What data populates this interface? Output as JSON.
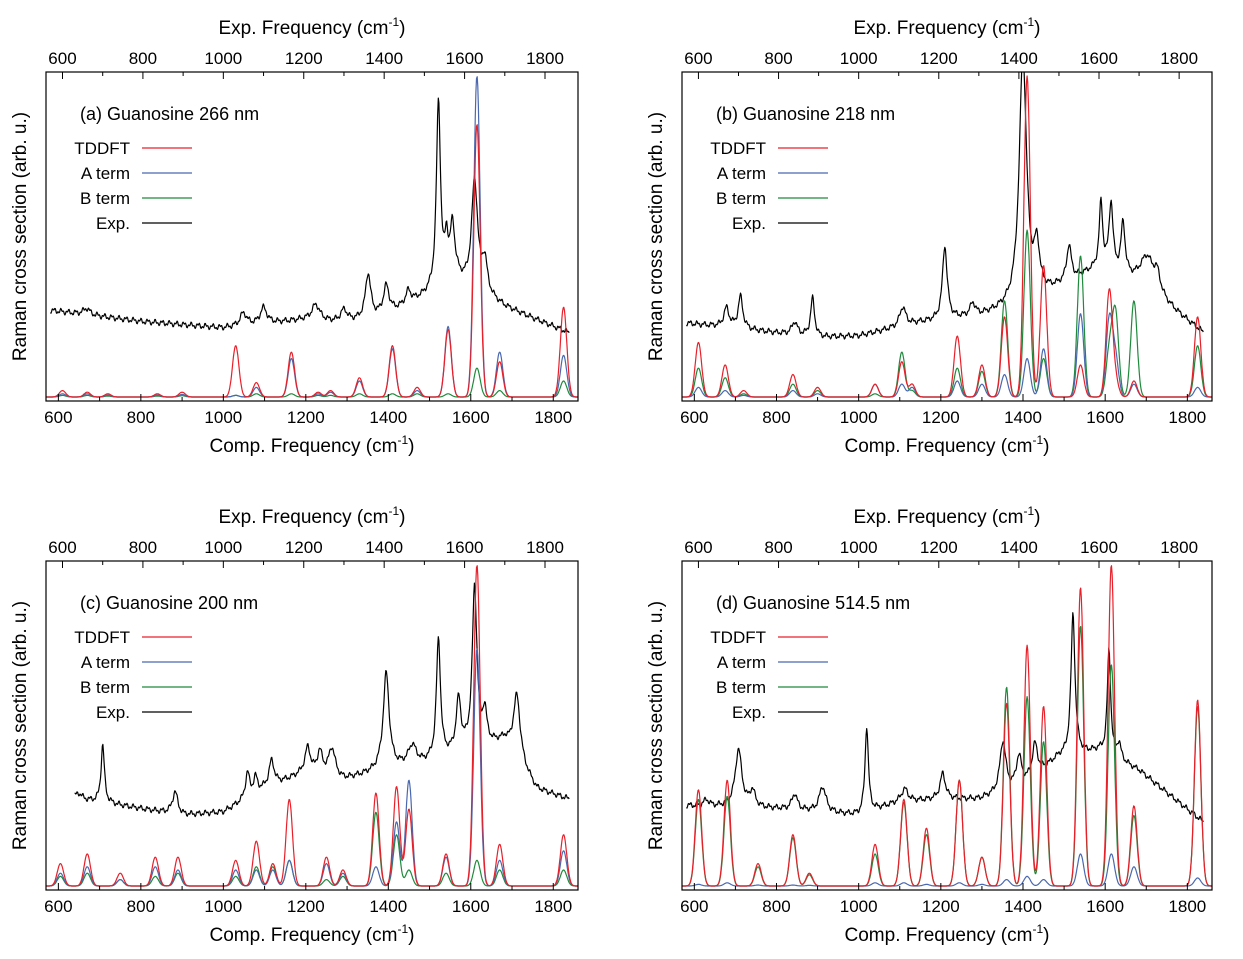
{
  "colors": {
    "TDDFT": "#e8202a",
    "A term": "#4a68b0",
    "B term": "#1f8a3c",
    "Exp.": "#000000"
  },
  "chart_data": [
    {
      "type": "line",
      "title": "(a) Guanosine 266 nm",
      "xlabel_bottom": "Comp. Frequency (cm",
      "xlabel_top": "Exp. Frequency (cm",
      "xlabel_sup": "-1",
      "xlabel_tail": ")",
      "ylabel": "Raman cross section (arb. u.)",
      "xlim": [
        570,
        1860
      ],
      "ylim": [
        0,
        1
      ],
      "xticks": [
        600,
        800,
        1000,
        1200,
        1400,
        1600,
        1800
      ],
      "xticks_top": [
        600,
        800,
        1000,
        1200,
        1400,
        1600,
        1800
      ],
      "top_axis": {
        "offset": 25,
        "scale": 0.975
      },
      "legend": [
        "TDDFT",
        "A term",
        "B term",
        "Exp."
      ],
      "calc_peaks": [
        [
          610,
          0.02,
          0.01,
          0.005
        ],
        [
          670,
          0.015,
          0.01,
          0.005
        ],
        [
          720,
          0.01,
          0.006,
          0.003
        ],
        [
          840,
          0.01,
          0.006,
          0.003
        ],
        [
          900,
          0.015,
          0.008,
          0.004
        ],
        [
          1030,
          0.16,
          0.005,
          0.005
        ],
        [
          1080,
          0.045,
          0.03,
          0.01
        ],
        [
          1165,
          0.14,
          0.12,
          0.01
        ],
        [
          1230,
          0.015,
          0.01,
          0.005
        ],
        [
          1260,
          0.02,
          0.015,
          0.005
        ],
        [
          1330,
          0.06,
          0.05,
          0.01
        ],
        [
          1410,
          0.16,
          0.15,
          0.01
        ],
        [
          1470,
          0.03,
          0.02,
          0.01
        ],
        [
          1545,
          0.21,
          0.22,
          0.01
        ],
        [
          1615,
          0.85,
          1.0,
          0.09
        ],
        [
          1670,
          0.11,
          0.14,
          0.02
        ],
        [
          1825,
          0.28,
          0.13,
          0.05
        ]
      ],
      "calc_width": 11,
      "exp": {
        "baseline": [
          [
            570,
            0.27
          ],
          [
            800,
            0.235
          ],
          [
            1000,
            0.215
          ],
          [
            1200,
            0.24
          ],
          [
            1300,
            0.23
          ],
          [
            1400,
            0.25
          ],
          [
            1580,
            0.36
          ],
          [
            1700,
            0.28
          ],
          [
            1860,
            0.2
          ]
        ],
        "peaks": [
          [
            660,
            0.02,
            10
          ],
          [
            1050,
            0.04,
            10
          ],
          [
            1100,
            0.05,
            10
          ],
          [
            1230,
            0.05,
            12
          ],
          [
            1300,
            0.04,
            10
          ],
          [
            1360,
            0.14,
            8
          ],
          [
            1405,
            0.09,
            9
          ],
          [
            1460,
            0.04,
            8
          ],
          [
            1535,
            0.58,
            6
          ],
          [
            1555,
            0.12,
            5
          ],
          [
            1570,
            0.17,
            7
          ],
          [
            1625,
            0.34,
            9
          ],
          [
            1650,
            0.1,
            8
          ]
        ]
      }
    },
    {
      "type": "line",
      "title": "(b) Guanosine 218 nm",
      "xlabel_bottom": "Comp. Frequency (cm",
      "xlabel_top": "Exp. Frequency (cm",
      "xlabel_sup": "-1",
      "xlabel_tail": ")",
      "ylabel": "Raman cross section (arb. u.)",
      "xlim": [
        570,
        1860
      ],
      "ylim": [
        0,
        1
      ],
      "xticks": [
        600,
        800,
        1000,
        1200,
        1400,
        1600,
        1800
      ],
      "xticks_top": [
        600,
        800,
        1000,
        1200,
        1400,
        1600,
        1800
      ],
      "top_axis": {
        "offset": 25,
        "scale": 0.975
      },
      "legend": [
        "TDDFT",
        "A term",
        "B term",
        "Exp."
      ],
      "calc_peaks": [
        [
          610,
          0.17,
          0.03,
          0.09
        ],
        [
          675,
          0.1,
          0.02,
          0.06
        ],
        [
          720,
          0.02,
          0.005,
          0.01
        ],
        [
          840,
          0.07,
          0.02,
          0.04
        ],
        [
          900,
          0.03,
          0.01,
          0.02
        ],
        [
          1040,
          0.04,
          0.04,
          0.01
        ],
        [
          1105,
          0.11,
          0.04,
          0.14
        ],
        [
          1130,
          0.04,
          0.03,
          0.02
        ],
        [
          1240,
          0.19,
          0.05,
          0.09
        ],
        [
          1300,
          0.1,
          0.04,
          0.08
        ],
        [
          1355,
          0.25,
          0.07,
          0.3
        ],
        [
          1410,
          1.0,
          0.12,
          0.52
        ],
        [
          1450,
          0.41,
          0.15,
          0.12
        ],
        [
          1540,
          0.1,
          0.26,
          0.44
        ],
        [
          1610,
          0.33,
          0.24,
          0.14
        ],
        [
          1625,
          0.05,
          0.12,
          0.26
        ],
        [
          1670,
          0.05,
          0.04,
          0.3
        ],
        [
          1825,
          0.25,
          0.03,
          0.16
        ]
      ],
      "calc_width": 11,
      "exp": {
        "baseline": [
          [
            570,
            0.23
          ],
          [
            900,
            0.185
          ],
          [
            1000,
            0.19
          ],
          [
            1150,
            0.23
          ],
          [
            1300,
            0.25
          ],
          [
            1400,
            0.28
          ],
          [
            1600,
            0.4
          ],
          [
            1700,
            0.35
          ],
          [
            1860,
            0.2
          ]
        ],
        "peaks": [
          [
            670,
            0.06,
            8
          ],
          [
            705,
            0.1,
            7
          ],
          [
            840,
            0.04,
            8
          ],
          [
            885,
            0.12,
            6
          ],
          [
            1110,
            0.06,
            9
          ],
          [
            1215,
            0.23,
            7
          ],
          [
            1285,
            0.04,
            8
          ],
          [
            1410,
            0.78,
            11
          ],
          [
            1445,
            0.14,
            8
          ],
          [
            1525,
            0.11,
            7
          ],
          [
            1605,
            0.2,
            5
          ],
          [
            1630,
            0.21,
            6
          ],
          [
            1660,
            0.16,
            6
          ],
          [
            1720,
            0.1,
            20
          ],
          [
            1745,
            0.06,
            10
          ]
        ]
      }
    },
    {
      "type": "line",
      "title": "(c) Guanosine 200 nm",
      "xlabel_bottom": "Comp. Frequency (cm",
      "xlabel_top": "Exp. Frequency (cm",
      "xlabel_sup": "-1",
      "xlabel_tail": ")",
      "ylabel": "Raman cross section (arb. u.)",
      "xlim": [
        570,
        1860
      ],
      "ylim": [
        0,
        1
      ],
      "xticks": [
        600,
        800,
        1000,
        1200,
        1400,
        1600,
        1800
      ],
      "xticks_top": [
        600,
        800,
        1000,
        1200,
        1400,
        1600,
        1800
      ],
      "top_axis": {
        "offset": 25,
        "scale": 0.975
      },
      "legend": [
        "TDDFT",
        "A term",
        "B term",
        "Exp."
      ],
      "calc_peaks": [
        [
          605,
          0.07,
          0.04,
          0.03
        ],
        [
          670,
          0.1,
          0.06,
          0.04
        ],
        [
          750,
          0.04,
          0.02,
          0.02
        ],
        [
          835,
          0.09,
          0.06,
          0.03
        ],
        [
          890,
          0.09,
          0.05,
          0.04
        ],
        [
          1030,
          0.08,
          0.05,
          0.03
        ],
        [
          1080,
          0.14,
          0.05,
          0.06
        ],
        [
          1120,
          0.07,
          0.05,
          0.06
        ],
        [
          1160,
          0.27,
          0.08,
          0.08
        ],
        [
          1250,
          0.09,
          0.07,
          0.02
        ],
        [
          1290,
          0.05,
          0.04,
          0.03
        ],
        [
          1370,
          0.29,
          0.06,
          0.23
        ],
        [
          1420,
          0.31,
          0.2,
          0.16
        ],
        [
          1450,
          0.24,
          0.33,
          0.05
        ],
        [
          1540,
          0.1,
          0.09,
          0.04
        ],
        [
          1615,
          1.0,
          0.74,
          0.08
        ],
        [
          1670,
          0.13,
          0.08,
          0.05
        ],
        [
          1825,
          0.16,
          0.11,
          0.05
        ]
      ],
      "calc_width": 11,
      "exp": {
        "baseline": [
          [
            630,
            0.27
          ],
          [
            700,
            0.26
          ],
          [
            800,
            0.24
          ],
          [
            900,
            0.22
          ],
          [
            1000,
            0.23
          ],
          [
            1100,
            0.3
          ],
          [
            1200,
            0.35
          ],
          [
            1300,
            0.33
          ],
          [
            1400,
            0.36
          ],
          [
            1500,
            0.38
          ],
          [
            1600,
            0.42
          ],
          [
            1700,
            0.45
          ],
          [
            1780,
            0.3
          ],
          [
            1860,
            0.27
          ]
        ],
        "peaks": [
          [
            640,
            0.02,
            10
          ],
          [
            700,
            0.18,
            5
          ],
          [
            880,
            0.07,
            8
          ],
          [
            1060,
            0.08,
            6
          ],
          [
            1080,
            0.05,
            6
          ],
          [
            1120,
            0.08,
            8
          ],
          [
            1210,
            0.08,
            8
          ],
          [
            1240,
            0.07,
            8
          ],
          [
            1270,
            0.09,
            10
          ],
          [
            1405,
            0.3,
            9
          ],
          [
            1470,
            0.06,
            12
          ],
          [
            1535,
            0.37,
            6
          ],
          [
            1585,
            0.16,
            7
          ],
          [
            1625,
            0.5,
            7
          ],
          [
            1650,
            0.1,
            6
          ],
          [
            1730,
            0.2,
            10
          ]
        ]
      }
    },
    {
      "type": "line",
      "title": "(d) Guanosine 514.5 nm",
      "xlabel_bottom": "Comp. Frequency (cm",
      "xlabel_top": "Exp. Frequency (cm",
      "xlabel_sup": "-1",
      "xlabel_tail": ")",
      "ylabel": "Raman cross section (arb. u.)",
      "xlim": [
        570,
        1860
      ],
      "ylim": [
        0,
        1
      ],
      "xticks": [
        600,
        800,
        1000,
        1200,
        1400,
        1600,
        1800
      ],
      "xticks_top": [
        600,
        800,
        1000,
        1200,
        1400,
        1600,
        1800
      ],
      "top_axis": {
        "offset": 25,
        "scale": 0.975
      },
      "legend": [
        "TDDFT",
        "A term",
        "B term",
        "Exp."
      ],
      "calc_peaks": [
        [
          610,
          0.3,
          0.005,
          0.27
        ],
        [
          680,
          0.33,
          0.01,
          0.28
        ],
        [
          755,
          0.07,
          0.003,
          0.06
        ],
        [
          840,
          0.16,
          0.003,
          0.15
        ],
        [
          880,
          0.04,
          0.002,
          0.035
        ],
        [
          1040,
          0.13,
          0.01,
          0.1
        ],
        [
          1110,
          0.27,
          0.01,
          0.26
        ],
        [
          1165,
          0.18,
          0.005,
          0.16
        ],
        [
          1245,
          0.33,
          0.01,
          0.33
        ],
        [
          1300,
          0.09,
          0.005,
          0.09
        ],
        [
          1360,
          0.57,
          0.02,
          0.62
        ],
        [
          1410,
          0.75,
          0.03,
          0.59
        ],
        [
          1450,
          0.56,
          0.02,
          0.45
        ],
        [
          1540,
          0.93,
          0.1,
          0.81
        ],
        [
          1615,
          1.0,
          0.1,
          0.69
        ],
        [
          1670,
          0.25,
          0.06,
          0.22
        ],
        [
          1825,
          0.58,
          0.025,
          0.56
        ]
      ],
      "calc_width": 11,
      "exp": {
        "baseline": [
          [
            570,
            0.25
          ],
          [
            800,
            0.24
          ],
          [
            1000,
            0.22
          ],
          [
            1100,
            0.26
          ],
          [
            1200,
            0.27
          ],
          [
            1300,
            0.27
          ],
          [
            1400,
            0.3
          ],
          [
            1500,
            0.4
          ],
          [
            1600,
            0.42
          ],
          [
            1700,
            0.36
          ],
          [
            1860,
            0.2
          ]
        ],
        "peaks": [
          [
            620,
            0.02,
            8
          ],
          [
            700,
            0.18,
            10
          ],
          [
            735,
            0.05,
            8
          ],
          [
            840,
            0.05,
            8
          ],
          [
            910,
            0.08,
            10
          ],
          [
            1020,
            0.27,
            5
          ],
          [
            1115,
            0.04,
            10
          ],
          [
            1210,
            0.08,
            8
          ],
          [
            1360,
            0.16,
            9
          ],
          [
            1400,
            0.1,
            8
          ],
          [
            1440,
            0.1,
            8
          ],
          [
            1535,
            0.44,
            6
          ],
          [
            1625,
            0.33,
            5
          ],
          [
            1650,
            0.05,
            6
          ]
        ]
      }
    }
  ]
}
